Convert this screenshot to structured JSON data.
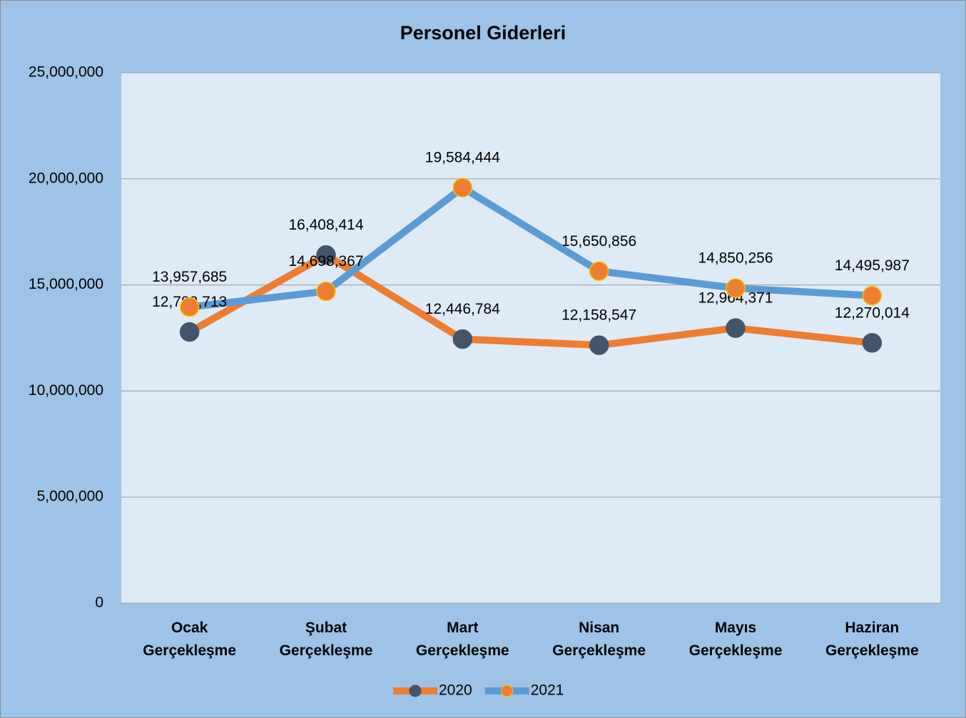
{
  "chart_data": {
    "type": "line",
    "title": "Personel Giderleri",
    "categories": [
      "Ocak Gerçekleşme",
      "Şubat Gerçekleşme",
      "Mart Gerçekleşme",
      "Nisan Gerçekleşme",
      "Mayıs Gerçekleşme",
      "Haziran Gerçekleşme"
    ],
    "series": [
      {
        "name": "2020",
        "color": "#ed7d31",
        "marker_color": "#44546a",
        "values": [
          12782713,
          16408414,
          12446784,
          12158547,
          12964371,
          12270014
        ],
        "value_labels": [
          "12,782,713",
          "16,408,414",
          "12,446,784",
          "12,158,547",
          "12,964,371",
          "12,270,014"
        ]
      },
      {
        "name": "2021",
        "color": "#5b9bd5",
        "marker_color": "#ed7d31",
        "values": [
          13957685,
          14698367,
          19584444,
          15650856,
          14850256,
          14495987
        ],
        "value_labels": [
          "13,957,685",
          "14,698,367",
          "19,584,444",
          "15,650,856",
          "14,850,256",
          "14,495,987"
        ]
      }
    ],
    "ylim": [
      0,
      25000000
    ],
    "yticks": [
      0,
      {
        "value": 5000000,
        "label": "5,000,000"
      },
      {
        "value": 10000000,
        "label": "10,000,000"
      },
      {
        "value": 15000000,
        "label": "15,000,000"
      },
      {
        "value": 20000000,
        "label": "20,000,000"
      },
      {
        "value": 25000000,
        "label": "25,000,000"
      }
    ],
    "grid": true,
    "legend": "bottom"
  }
}
